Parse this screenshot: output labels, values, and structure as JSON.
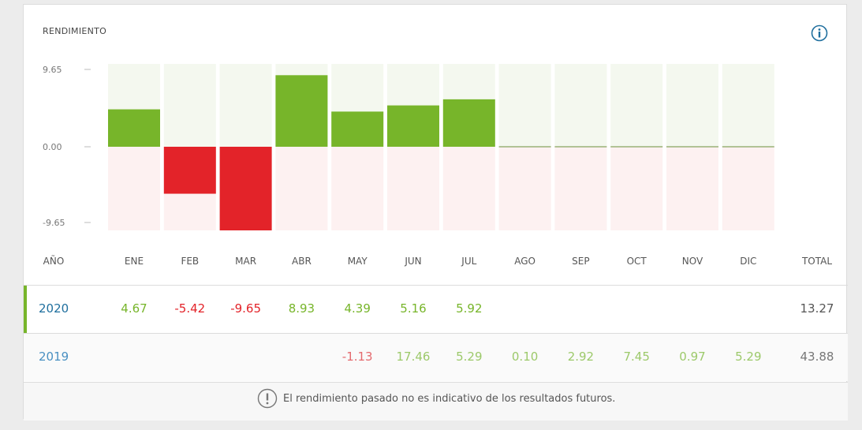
{
  "title": "RENDIMIENTO",
  "info_icon": "info-icon",
  "colors": {
    "positive": "#77b52a",
    "negative": "#e32329",
    "pos_bg": "#f4f8ef",
    "neg_bg": "#fdf1f1",
    "year_blue": "#1f6f9e"
  },
  "chart_data": {
    "type": "bar",
    "categories": [
      "ENE",
      "FEB",
      "MAR",
      "ABR",
      "MAY",
      "JUN",
      "JUL",
      "AGO",
      "SEP",
      "OCT",
      "NOV",
      "DIC"
    ],
    "series": [
      {
        "name": "2020",
        "values": [
          4.67,
          -5.42,
          -9.65,
          8.93,
          4.39,
          5.16,
          5.92,
          null,
          null,
          null,
          null,
          null
        ]
      }
    ],
    "ylim": [
      -9.65,
      9.65
    ],
    "yticks": [
      "9.65",
      "0.00",
      "-9.65"
    ],
    "xlabel": "",
    "ylabel": ""
  },
  "table": {
    "header": {
      "year": "AÑO",
      "months": [
        "ENE",
        "FEB",
        "MAR",
        "ABR",
        "MAY",
        "JUN",
        "JUL",
        "AGO",
        "SEP",
        "OCT",
        "NOV",
        "DIC"
      ],
      "total": "TOTAL"
    },
    "rows": [
      {
        "year": "2020",
        "values": [
          "4.67",
          "-5.42",
          "-9.65",
          "8.93",
          "4.39",
          "5.16",
          "5.92",
          "",
          "",
          "",
          "",
          ""
        ],
        "total": "13.27"
      },
      {
        "year": "2019",
        "values": [
          "",
          "",
          "",
          "",
          "-1.13",
          "17.46",
          "5.29",
          "0.10",
          "2.92",
          "7.45",
          "0.97",
          "5.29"
        ],
        "total": "43.88"
      }
    ]
  },
  "footer": {
    "icon": "exclamation-circle-icon",
    "text": "El rendimiento pasado no es indicativo de los resultados futuros."
  }
}
